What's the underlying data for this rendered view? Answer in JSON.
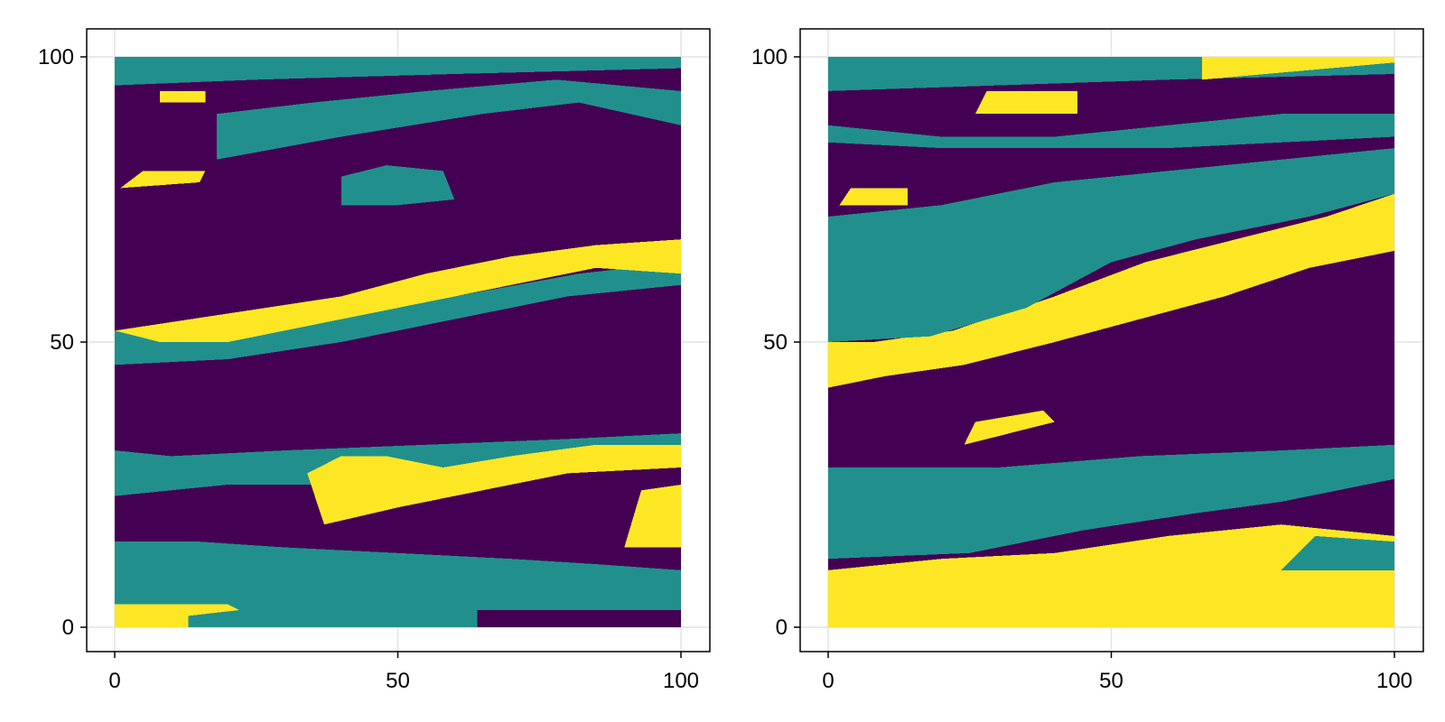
{
  "chart_data": [
    {
      "type": "heatmap",
      "title": "",
      "xlabel": "",
      "ylabel": "",
      "xlim": [
        0,
        100
      ],
      "ylim": [
        0,
        100
      ],
      "xticks": [
        0,
        50,
        100
      ],
      "yticks": [
        0,
        50,
        100
      ],
      "xtick_labels": [
        "0",
        "50",
        "100"
      ],
      "ytick_labels": [
        "0",
        "50",
        "100"
      ],
      "grid": true,
      "categories": [
        0,
        1,
        2
      ],
      "category_colors": [
        "#440154",
        "#21908c",
        "#fde725"
      ],
      "regions": [
        {
          "category": 1,
          "points": [
            [
              0,
              0
            ],
            [
              64,
              0
            ],
            [
              64,
              3
            ],
            [
              100,
              3
            ],
            [
              100,
              10
            ],
            [
              86,
              11
            ],
            [
              70,
              12
            ],
            [
              50,
              13
            ],
            [
              30,
              14
            ],
            [
              15,
              15
            ],
            [
              0,
              15
            ]
          ]
        },
        {
          "category": 2,
          "points": [
            [
              0,
              0
            ],
            [
              13,
              0
            ],
            [
              13,
              2
            ],
            [
              22,
              3
            ],
            [
              20,
              4
            ],
            [
              0,
              4
            ]
          ]
        },
        {
          "category": 1,
          "points": [
            [
              0,
              23
            ],
            [
              20,
              25
            ],
            [
              45,
              25
            ],
            [
              72,
              26
            ],
            [
              100,
              30
            ],
            [
              100,
              34
            ],
            [
              80,
              33
            ],
            [
              55,
              32
            ],
            [
              30,
              31
            ],
            [
              10,
              30
            ],
            [
              0,
              31
            ]
          ]
        },
        {
          "category": 2,
          "points": [
            [
              37,
              18
            ],
            [
              50,
              21
            ],
            [
              65,
              24
            ],
            [
              80,
              27
            ],
            [
              100,
              28
            ],
            [
              100,
              32
            ],
            [
              85,
              32
            ],
            [
              70,
              30
            ],
            [
              58,
              28
            ],
            [
              48,
              30
            ],
            [
              40,
              30
            ],
            [
              34,
              27
            ]
          ]
        },
        {
          "category": 2,
          "points": [
            [
              90,
              14
            ],
            [
              100,
              14
            ],
            [
              100,
              25
            ],
            [
              93,
              24
            ]
          ]
        },
        {
          "category": 1,
          "points": [
            [
              0,
              46
            ],
            [
              20,
              47
            ],
            [
              40,
              50
            ],
            [
              60,
              54
            ],
            [
              80,
              58
            ],
            [
              100,
              60
            ],
            [
              100,
              64
            ],
            [
              82,
              62
            ],
            [
              60,
              58
            ],
            [
              40,
              54
            ],
            [
              20,
              52
            ],
            [
              0,
              52
            ]
          ]
        },
        {
          "category": 2,
          "points": [
            [
              0,
              52
            ],
            [
              20,
              55
            ],
            [
              40,
              58
            ],
            [
              55,
              62
            ],
            [
              70,
              65
            ],
            [
              85,
              67
            ],
            [
              100,
              68
            ],
            [
              100,
              62
            ],
            [
              85,
              63
            ],
            [
              70,
              60
            ],
            [
              55,
              57
            ],
            [
              40,
              54
            ],
            [
              20,
              50
            ],
            [
              8,
              50
            ],
            [
              0,
              52
            ]
          ]
        },
        {
          "category": 1,
          "points": [
            [
              0,
              95
            ],
            [
              25,
              96
            ],
            [
              60,
              97
            ],
            [
              100,
              98
            ],
            [
              100,
              100
            ],
            [
              0,
              100
            ]
          ]
        },
        {
          "category": 1,
          "points": [
            [
              18,
              82
            ],
            [
              40,
              86
            ],
            [
              65,
              90
            ],
            [
              82,
              92
            ],
            [
              100,
              88
            ],
            [
              100,
              94
            ],
            [
              78,
              96
            ],
            [
              55,
              94
            ],
            [
              35,
              92
            ],
            [
              18,
              90
            ]
          ]
        },
        {
          "category": 1,
          "points": [
            [
              40,
              74
            ],
            [
              50,
              74
            ],
            [
              60,
              75
            ],
            [
              58,
              80
            ],
            [
              48,
              81
            ],
            [
              40,
              79
            ]
          ]
        },
        {
          "category": 2,
          "points": [
            [
              1,
              77
            ],
            [
              15,
              78
            ],
            [
              16,
              80
            ],
            [
              5,
              80
            ]
          ]
        },
        {
          "category": 2,
          "points": [
            [
              8,
              92
            ],
            [
              16,
              92
            ],
            [
              16,
              94
            ],
            [
              8,
              94
            ]
          ]
        }
      ]
    },
    {
      "type": "heatmap",
      "title": "",
      "xlabel": "",
      "ylabel": "",
      "xlim": [
        0,
        100
      ],
      "ylim": [
        0,
        100
      ],
      "xticks": [
        0,
        50,
        100
      ],
      "yticks": [
        0,
        50,
        100
      ],
      "xtick_labels": [
        "0",
        "50",
        "100"
      ],
      "ytick_labels": [
        "0",
        "50",
        "100"
      ],
      "grid": true,
      "categories": [
        0,
        1,
        2
      ],
      "category_colors": [
        "#440154",
        "#21908c",
        "#fde725"
      ],
      "regions": [
        {
          "category": 2,
          "points": [
            [
              0,
              0
            ],
            [
              100,
              0
            ],
            [
              100,
              16
            ],
            [
              80,
              18
            ],
            [
              60,
              16
            ],
            [
              40,
              13
            ],
            [
              20,
              12
            ],
            [
              0,
              10
            ]
          ]
        },
        {
          "category": 1,
          "points": [
            [
              0,
              12
            ],
            [
              25,
              13
            ],
            [
              45,
              17
            ],
            [
              65,
              20
            ],
            [
              80,
              22
            ],
            [
              100,
              26
            ],
            [
              100,
              32
            ],
            [
              80,
              31
            ],
            [
              55,
              30
            ],
            [
              30,
              28
            ],
            [
              0,
              28
            ]
          ]
        },
        {
          "category": 1,
          "points": [
            [
              80,
              10
            ],
            [
              100,
              10
            ],
            [
              100,
              15
            ],
            [
              86,
              16
            ]
          ]
        },
        {
          "category": 2,
          "points": [
            [
              0,
              42
            ],
            [
              10,
              44
            ],
            [
              24,
              46
            ],
            [
              40,
              50
            ],
            [
              55,
              54
            ],
            [
              70,
              58
            ],
            [
              85,
              63
            ],
            [
              100,
              66
            ],
            [
              100,
              76
            ],
            [
              88,
              72
            ],
            [
              72,
              68
            ],
            [
              56,
              64
            ],
            [
              40,
              58
            ],
            [
              22,
              52
            ],
            [
              8,
              50
            ],
            [
              0,
              50
            ]
          ]
        },
        {
          "category": 1,
          "points": [
            [
              0,
              50
            ],
            [
              18,
              51
            ],
            [
              35,
              56
            ],
            [
              50,
              64
            ],
            [
              65,
              68
            ],
            [
              85,
              72
            ],
            [
              100,
              76
            ],
            [
              100,
              84
            ],
            [
              80,
              82
            ],
            [
              60,
              80
            ],
            [
              40,
              78
            ],
            [
              20,
              74
            ],
            [
              0,
              72
            ]
          ]
        },
        {
          "category": 1,
          "points": [
            [
              0,
              88
            ],
            [
              20,
              86
            ],
            [
              40,
              86
            ],
            [
              60,
              88
            ],
            [
              80,
              90
            ],
            [
              100,
              90
            ],
            [
              100,
              86
            ],
            [
              80,
              85
            ],
            [
              60,
              84
            ],
            [
              40,
              84
            ],
            [
              20,
              84
            ],
            [
              0,
              85
            ]
          ]
        },
        {
          "category": 1,
          "points": [
            [
              0,
              94
            ],
            [
              30,
              95
            ],
            [
              60,
              96
            ],
            [
              100,
              97
            ],
            [
              100,
              100
            ],
            [
              0,
              100
            ]
          ]
        },
        {
          "category": 1,
          "points": [
            [
              0,
              62
            ],
            [
              22,
              63
            ],
            [
              20,
              70
            ],
            [
              8,
              72
            ],
            [
              0,
              70
            ]
          ]
        },
        {
          "category": 2,
          "points": [
            [
              66,
              96
            ],
            [
              100,
              99
            ],
            [
              100,
              100
            ],
            [
              66,
              100
            ]
          ]
        },
        {
          "category": 2,
          "points": [
            [
              26,
              90
            ],
            [
              44,
              90
            ],
            [
              44,
              94
            ],
            [
              28,
              94
            ]
          ]
        },
        {
          "category": 2,
          "points": [
            [
              24,
              32
            ],
            [
              40,
              36
            ],
            [
              38,
              38
            ],
            [
              26,
              36
            ]
          ]
        },
        {
          "category": 2,
          "points": [
            [
              2,
              74
            ],
            [
              14,
              74
            ],
            [
              14,
              77
            ],
            [
              4,
              77
            ]
          ]
        }
      ]
    }
  ]
}
